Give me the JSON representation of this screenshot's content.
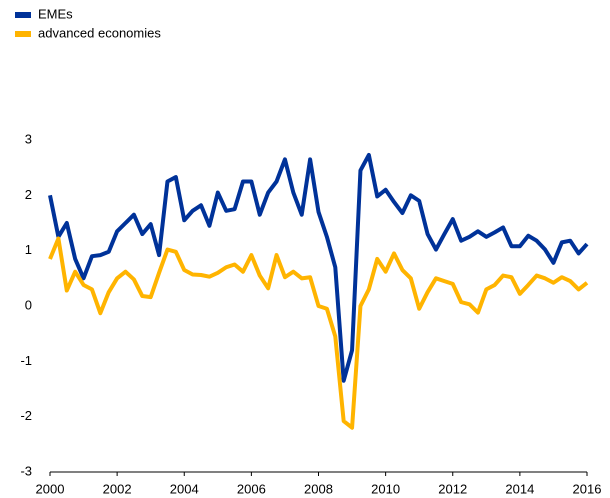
{
  "chart_data": {
    "type": "line",
    "x": [
      2000,
      2000.25,
      2000.5,
      2000.75,
      2001,
      2001.25,
      2001.5,
      2001.75,
      2002,
      2002.25,
      2002.5,
      2002.75,
      2003,
      2003.25,
      2003.5,
      2003.75,
      2004,
      2004.25,
      2004.5,
      2004.75,
      2005,
      2005.25,
      2005.5,
      2005.75,
      2006,
      2006.25,
      2006.5,
      2006.75,
      2007,
      2007.25,
      2007.5,
      2007.75,
      2008,
      2008.25,
      2008.5,
      2008.75,
      2009,
      2009.25,
      2009.5,
      2009.75,
      2010,
      2010.25,
      2010.5,
      2010.75,
      2011,
      2011.25,
      2011.5,
      2011.75,
      2012,
      2012.25,
      2012.5,
      2012.75,
      2013,
      2013.25,
      2013.5,
      2013.75,
      2014,
      2014.25,
      2014.5,
      2014.75,
      2015,
      2015.25,
      2015.5,
      2015.75,
      2016
    ],
    "series": [
      {
        "name": "EMEs",
        "color": "#003299",
        "values": [
          2.0,
          1.25,
          1.5,
          0.85,
          0.5,
          0.9,
          0.92,
          0.98,
          1.35,
          1.5,
          1.65,
          1.3,
          1.48,
          0.92,
          2.25,
          2.33,
          1.55,
          1.72,
          1.82,
          1.45,
          2.05,
          1.72,
          1.75,
          2.25,
          2.25,
          1.65,
          2.05,
          2.25,
          2.65,
          2.05,
          1.65,
          2.65,
          1.7,
          1.25,
          0.7,
          -1.35,
          -0.8,
          2.45,
          2.73,
          1.98,
          2.1,
          1.88,
          1.68,
          2.0,
          1.9,
          1.3,
          1.02,
          1.3,
          1.57,
          1.18,
          1.25,
          1.35,
          1.25,
          1.33,
          1.42,
          1.08,
          1.08,
          1.27,
          1.18,
          1.02,
          0.78,
          1.15,
          1.18,
          0.95,
          1.12
        ]
      },
      {
        "name": "advanced economies",
        "color": "#ffb400",
        "values": [
          0.85,
          1.22,
          0.28,
          0.62,
          0.38,
          0.3,
          -0.13,
          0.25,
          0.5,
          0.62,
          0.48,
          0.18,
          0.16,
          0.6,
          1.02,
          0.98,
          0.65,
          0.57,
          0.56,
          0.53,
          0.6,
          0.7,
          0.75,
          0.62,
          0.92,
          0.55,
          0.32,
          0.92,
          0.52,
          0.62,
          0.5,
          0.52,
          0.0,
          -0.05,
          -0.55,
          -2.08,
          -2.2,
          0.0,
          0.3,
          0.85,
          0.62,
          0.95,
          0.65,
          0.5,
          -0.05,
          0.25,
          0.5,
          0.45,
          0.4,
          0.07,
          0.03,
          -0.12,
          0.3,
          0.38,
          0.55,
          0.52,
          0.22,
          0.38,
          0.55,
          0.5,
          0.42,
          0.52,
          0.45,
          0.3,
          0.42
        ]
      }
    ],
    "xlim": [
      2000,
      2016
    ],
    "xticks": [
      2000,
      2002,
      2004,
      2006,
      2008,
      2010,
      2012,
      2014,
      2016
    ],
    "ylim": [
      -3,
      3
    ],
    "yticks": [
      -3,
      -2,
      -1,
      0,
      1,
      2,
      3
    ]
  }
}
